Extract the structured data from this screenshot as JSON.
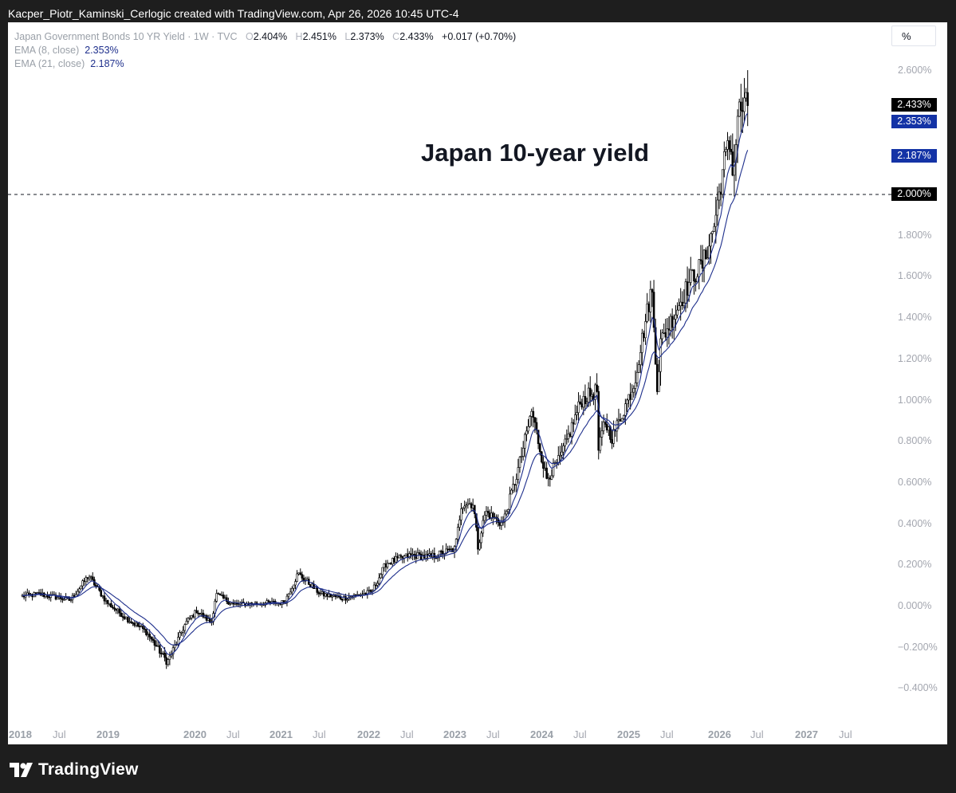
{
  "header": {
    "caption": "Kacper_Piotr_Kaminski_Cerlogic created with TradingView.com, Apr 26, 2026 10:45 UTC-4"
  },
  "legend": {
    "symbol": "Japan Government Bonds 10 YR Yield · 1W · TVC",
    "o_key": "O",
    "o_val": "2.404%",
    "h_key": "H",
    "h_val": "2.451%",
    "l_key": "L",
    "l_val": "2.373%",
    "c_key": "C",
    "c_val": "2.433%",
    "change": "+0.017 (+0.70%)",
    "ema8_label": "EMA (8, close)",
    "ema8_val": "2.353%",
    "ema21_label": "EMA (21, close)",
    "ema21_val": "2.187%"
  },
  "unit_label": "%",
  "annotation": "Japan 10-year yield",
  "footer": {
    "logo_text": "TradingView"
  },
  "colors": {
    "candle": "#000000",
    "ema8": "#1e2f8c",
    "ema21": "#1e2f8c",
    "last_price_tag": "#000000",
    "ema_tag": "#1433a6"
  },
  "chart_data": {
    "type": "candlestick",
    "title": "Japan 10-year yield",
    "ylabel": "%",
    "ylim": [
      -0.5,
      2.7
    ],
    "y_ticks": [
      "2.600%",
      "1.800%",
      "1.600%",
      "1.400%",
      "1.200%",
      "1.000%",
      "0.800%",
      "0.600%",
      "0.400%",
      "0.200%",
      "0.000%",
      "−0.200%",
      "−0.400%"
    ],
    "x_ticks": [
      "2018",
      "Jul",
      "2019",
      "2020",
      "Jul",
      "2021",
      "Jul",
      "2022",
      "Jul",
      "2023",
      "Jul",
      "2024",
      "Jul",
      "2025",
      "Jul",
      "2026",
      "Jul",
      "2027",
      "Jul"
    ],
    "price_tags": {
      "last": "2.433%",
      "ema8": "2.353%",
      "ema21": "2.187%",
      "level": "2.000%"
    },
    "horizontal_line": {
      "value": 2.0,
      "style": "dashed"
    },
    "grid": false,
    "close_anchors": [
      [
        "2018-01-01",
        0.05
      ],
      [
        "2018-03-15",
        0.06
      ],
      [
        "2018-06-15",
        0.04
      ],
      [
        "2018-07-20",
        0.03
      ],
      [
        "2018-10-05",
        0.15
      ],
      [
        "2018-12-20",
        0.02
      ],
      [
        "2019-03-15",
        -0.06
      ],
      [
        "2019-06-01",
        -0.12
      ],
      [
        "2019-08-30",
        -0.27
      ],
      [
        "2019-11-15",
        -0.08
      ],
      [
        "2019-12-31",
        -0.02
      ],
      [
        "2020-03-01",
        -0.08
      ],
      [
        "2020-03-20",
        0.06
      ],
      [
        "2020-06-01",
        0.01
      ],
      [
        "2020-12-31",
        0.02
      ],
      [
        "2021-02-26",
        0.16
      ],
      [
        "2021-06-01",
        0.06
      ],
      [
        "2021-09-01",
        0.04
      ],
      [
        "2021-12-31",
        0.07
      ],
      [
        "2022-03-01",
        0.21
      ],
      [
        "2022-06-15",
        0.25
      ],
      [
        "2022-09-01",
        0.24
      ],
      [
        "2022-12-15",
        0.28
      ],
      [
        "2023-01-10",
        0.5
      ],
      [
        "2023-03-01",
        0.5
      ],
      [
        "2023-03-20",
        0.29
      ],
      [
        "2023-04-20",
        0.46
      ],
      [
        "2023-07-01",
        0.4
      ],
      [
        "2023-09-01",
        0.65
      ],
      [
        "2023-10-31",
        0.95
      ],
      [
        "2023-12-31",
        0.62
      ],
      [
        "2024-02-28",
        0.72
      ],
      [
        "2024-05-24",
        1.0
      ],
      [
        "2024-07-31",
        1.05
      ],
      [
        "2024-08-05",
        0.75
      ],
      [
        "2024-08-30",
        0.9
      ],
      [
        "2024-10-01",
        0.82
      ],
      [
        "2024-12-31",
        1.08
      ],
      [
        "2025-03-15",
        1.55
      ],
      [
        "2025-04-08",
        1.05
      ],
      [
        "2025-04-20",
        1.28
      ],
      [
        "2025-06-30",
        1.45
      ],
      [
        "2025-08-30",
        1.6
      ],
      [
        "2025-10-15",
        1.66
      ],
      [
        "2025-12-01",
        1.85
      ],
      [
        "2026-01-10",
        2.15
      ],
      [
        "2026-02-05",
        2.25
      ],
      [
        "2026-02-20",
        2.1
      ],
      [
        "2026-03-10",
        2.4
      ],
      [
        "2026-04-20",
        2.433
      ]
    ]
  }
}
